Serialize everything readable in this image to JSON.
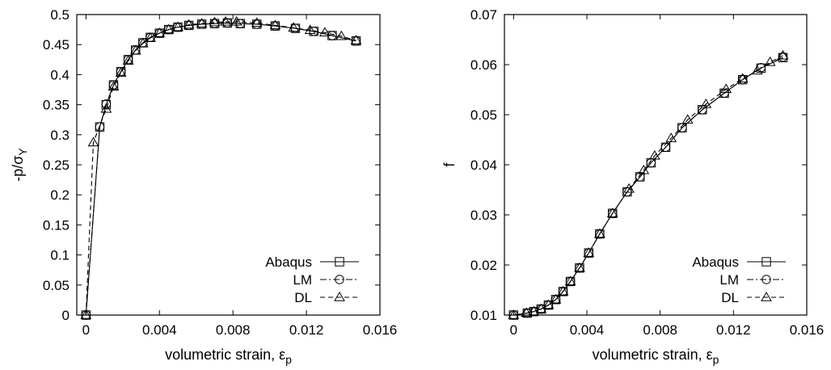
{
  "chart_data": [
    {
      "type": "line",
      "xlabel": "volumetric strain, ε",
      "xlabel_subscript": "p",
      "ylabel": "-p/σ",
      "ylabel_subscript": "Y",
      "xlim": [
        -0.0005,
        0.016
      ],
      "ylim": [
        0,
        0.5
      ],
      "xticks": [
        "0",
        "0.004",
        "0.008",
        "0.012",
        "0.016"
      ],
      "xtick_values": [
        0,
        0.004,
        0.008,
        0.012,
        0.016
      ],
      "yticks": [
        "0",
        "0.05",
        "0.1",
        "0.15",
        "0.2",
        "0.25",
        "0.3",
        "0.35",
        "0.4",
        "0.45",
        "0.5"
      ],
      "ytick_values": [
        0,
        0.05,
        0.1,
        0.15,
        0.2,
        0.25,
        0.3,
        0.35,
        0.4,
        0.45,
        0.5
      ],
      "legend_position": "bottom-right",
      "grid": false,
      "series": [
        {
          "name": "Abaqus",
          "marker": "square",
          "dash": "solid",
          "x": [
            0,
            0.00075,
            0.0011,
            0.0015,
            0.0019,
            0.0023,
            0.0027,
            0.0031,
            0.0035,
            0.004,
            0.0045,
            0.005,
            0.0056,
            0.0063,
            0.007,
            0.0077,
            0.0084,
            0.0093,
            0.0103,
            0.0114,
            0.0124,
            0.0134,
            0.0147
          ],
          "y": [
            0,
            0.313,
            0.35,
            0.383,
            0.405,
            0.425,
            0.441,
            0.453,
            0.462,
            0.469,
            0.475,
            0.479,
            0.482,
            0.484,
            0.485,
            0.486,
            0.485,
            0.484,
            0.481,
            0.477,
            0.472,
            0.465,
            0.456
          ]
        },
        {
          "name": "LM",
          "marker": "circle",
          "dash": "dashdot",
          "x": [
            0,
            0.00075,
            0.0011,
            0.0015,
            0.0019,
            0.0023,
            0.0027,
            0.0031,
            0.0035,
            0.004,
            0.0045,
            0.005,
            0.0056,
            0.0063,
            0.007,
            0.0077,
            0.0084,
            0.0093,
            0.0103,
            0.0114,
            0.0124,
            0.0134,
            0.0147
          ],
          "y": [
            0,
            0.313,
            0.351,
            0.383,
            0.405,
            0.425,
            0.441,
            0.453,
            0.462,
            0.469,
            0.475,
            0.479,
            0.482,
            0.484,
            0.485,
            0.486,
            0.485,
            0.484,
            0.481,
            0.477,
            0.472,
            0.465,
            0.456
          ]
        },
        {
          "name": "DL",
          "marker": "triangle",
          "dash": "dashed",
          "x": [
            0,
            0.0004,
            0.0011,
            0.0015,
            0.0019,
            0.0023,
            0.0027,
            0.0031,
            0.0035,
            0.004,
            0.0045,
            0.005,
            0.0056,
            0.0063,
            0.007,
            0.0076,
            0.0082,
            0.0093,
            0.0103,
            0.0113,
            0.0122,
            0.013,
            0.0139,
            0.0147
          ],
          "y": [
            0,
            0.287,
            0.343,
            0.38,
            0.403,
            0.423,
            0.44,
            0.452,
            0.461,
            0.469,
            0.475,
            0.479,
            0.483,
            0.485,
            0.487,
            0.488,
            0.488,
            0.486,
            0.482,
            0.478,
            0.474,
            0.47,
            0.464,
            0.457
          ]
        }
      ]
    },
    {
      "type": "line",
      "xlabel": "volumetric strain, ε",
      "xlabel_subscript": "p",
      "ylabel": "f",
      "ylabel_subscript": "",
      "xlim": [
        -0.0005,
        0.016
      ],
      "ylim": [
        0.01,
        0.07
      ],
      "xticks": [
        "0",
        "0.004",
        "0.008",
        "0.012",
        "0.016"
      ],
      "xtick_values": [
        0,
        0.004,
        0.008,
        0.012,
        0.016
      ],
      "yticks": [
        "0.01",
        "0.02",
        "0.03",
        "0.04",
        "0.05",
        "0.06",
        "0.07"
      ],
      "ytick_values": [
        0.01,
        0.02,
        0.03,
        0.04,
        0.05,
        0.06,
        0.07
      ],
      "legend_position": "bottom-right",
      "grid": false,
      "series": [
        {
          "name": "Abaqus",
          "marker": "square",
          "dash": "solid",
          "x": [
            0,
            0.00075,
            0.0011,
            0.0015,
            0.0019,
            0.0023,
            0.0027,
            0.0031,
            0.0036,
            0.0041,
            0.0047,
            0.0054,
            0.0062,
            0.0069,
            0.0075,
            0.0083,
            0.0092,
            0.0103,
            0.0115,
            0.0125,
            0.0135,
            0.0147
          ],
          "y": [
            0.01,
            0.0104,
            0.0107,
            0.0112,
            0.012,
            0.0131,
            0.0147,
            0.0167,
            0.0194,
            0.0224,
            0.0262,
            0.0303,
            0.0346,
            0.0376,
            0.0404,
            0.0435,
            0.0474,
            0.051,
            0.0543,
            0.057,
            0.0593,
            0.0614
          ]
        },
        {
          "name": "LM",
          "marker": "circle",
          "dash": "dashdot",
          "x": [
            0,
            0.00075,
            0.0011,
            0.0015,
            0.0019,
            0.0023,
            0.0027,
            0.0031,
            0.0036,
            0.0041,
            0.0047,
            0.0054,
            0.0062,
            0.0069,
            0.0075,
            0.0083,
            0.0092,
            0.0103,
            0.0115,
            0.0125,
            0.0135,
            0.0147
          ],
          "y": [
            0.01,
            0.0104,
            0.0107,
            0.0112,
            0.012,
            0.0131,
            0.0147,
            0.0167,
            0.0194,
            0.0224,
            0.0262,
            0.0303,
            0.0346,
            0.0376,
            0.0404,
            0.0435,
            0.0474,
            0.051,
            0.0543,
            0.057,
            0.0594,
            0.0615
          ]
        },
        {
          "name": "DL",
          "marker": "triangle",
          "dash": "dashed",
          "x": [
            0,
            0.0007,
            0.0011,
            0.0015,
            0.0019,
            0.0023,
            0.0027,
            0.0031,
            0.0036,
            0.0041,
            0.0047,
            0.0054,
            0.0063,
            0.0071,
            0.0077,
            0.0086,
            0.0095,
            0.0105,
            0.0116,
            0.0125,
            0.0133,
            0.014,
            0.0147
          ],
          "y": [
            0.01,
            0.0104,
            0.0107,
            0.0112,
            0.012,
            0.0131,
            0.0147,
            0.0167,
            0.0194,
            0.0224,
            0.0262,
            0.0303,
            0.0352,
            0.0389,
            0.0418,
            0.0453,
            0.049,
            0.0521,
            0.0551,
            0.0572,
            0.0588,
            0.0605,
            0.0618
          ]
        }
      ]
    }
  ]
}
